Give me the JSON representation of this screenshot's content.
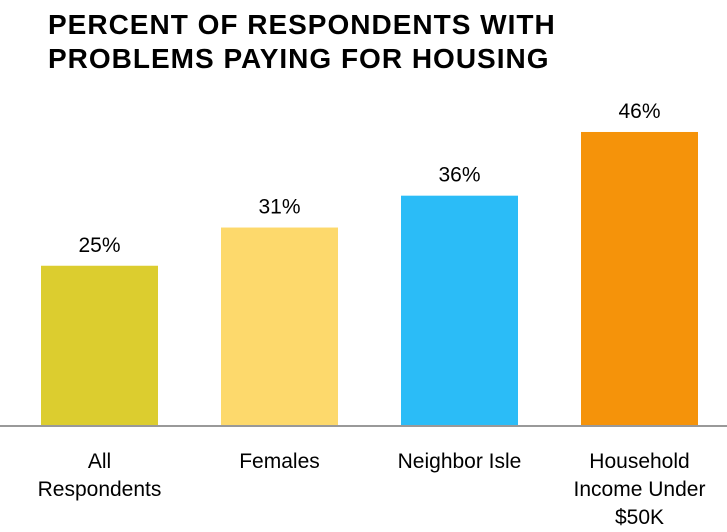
{
  "chart_data": {
    "type": "bar",
    "title": [
      "PERCENT OF RESPONDENTS WITH",
      "PROBLEMS PAYING FOR HOUSING"
    ],
    "categories": [
      "All Respondents",
      "Females",
      "Neighbor Isle",
      "Household Income Under $50K"
    ],
    "values": [
      25,
      31,
      36,
      46
    ],
    "value_labels": [
      "25%",
      "31%",
      "36%",
      "46%"
    ],
    "colors": [
      "#dccd2f",
      "#fdd96c",
      "#2bbcf7",
      "#f5930a"
    ]
  }
}
